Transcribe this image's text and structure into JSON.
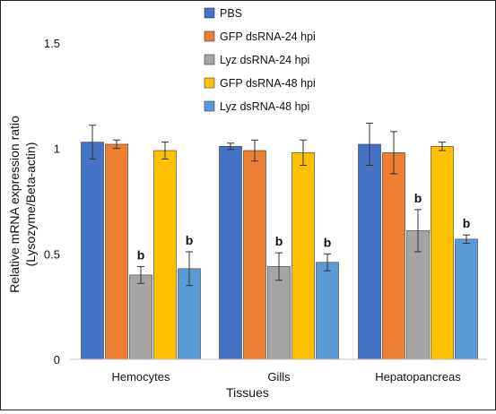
{
  "chart_data": {
    "type": "bar",
    "categories": [
      "Hemocytes",
      "Gills",
      "Hepatopancreas"
    ],
    "series": [
      {
        "name": "PBS",
        "color": "#4472C4",
        "values": [
          1.03,
          1.01,
          1.02
        ],
        "errors": [
          0.08,
          0.015,
          0.1
        ],
        "labels": [
          "",
          "",
          ""
        ]
      },
      {
        "name": "GFP dsRNA-24 hpi",
        "color": "#ED7D31",
        "values": [
          1.02,
          0.99,
          0.98
        ],
        "errors": [
          0.02,
          0.05,
          0.1
        ],
        "labels": [
          "",
          "",
          ""
        ]
      },
      {
        "name": "Lyz dsRNA-24 hpi",
        "color": "#A5A5A5",
        "values": [
          0.4,
          0.44,
          0.61
        ],
        "errors": [
          0.04,
          0.065,
          0.1
        ],
        "labels": [
          "b",
          "b",
          "b"
        ]
      },
      {
        "name": "GFP dsRNA-48 hpi",
        "color": "#FFC000",
        "values": [
          0.99,
          0.98,
          1.01
        ],
        "errors": [
          0.04,
          0.06,
          0.02
        ],
        "labels": [
          "",
          "",
          ""
        ]
      },
      {
        "name": "Lyz dsRNA-48 hpi",
        "color": "#5B9BD5",
        "values": [
          0.43,
          0.46,
          0.57
        ],
        "errors": [
          0.08,
          0.04,
          0.02
        ],
        "labels": [
          "b",
          "b",
          "b"
        ]
      }
    ],
    "xlabel": "Tissues",
    "ylabel_line1": "Relative mRNA expression ratio",
    "ylabel_line2": "(Lysozyme/Beta-actin)",
    "ylim": [
      0,
      1.5
    ],
    "yticks": [
      "0",
      "0.5",
      "1",
      "1.5"
    ],
    "ytick_values": [
      0,
      0.5,
      1,
      1.5
    ],
    "grid": false,
    "legend_position": "top-center"
  }
}
